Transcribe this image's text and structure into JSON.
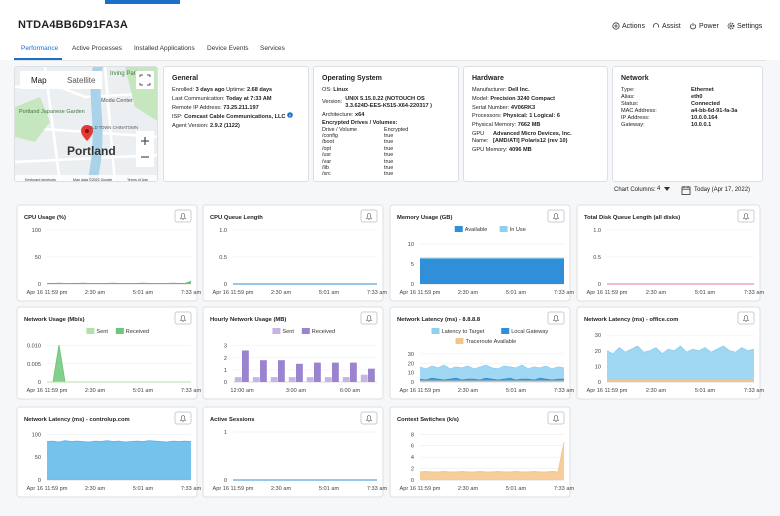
{
  "header": {
    "device": "NTDA4BB6D91FA3A",
    "actions": [
      "Actions",
      "Assist",
      "Power",
      "Settings"
    ]
  },
  "tabs": [
    "Performance",
    "Active Processes",
    "Installed Applications",
    "Device Events",
    "Services"
  ],
  "map": {
    "buttons": [
      "Map",
      "Satellite"
    ],
    "city": "Portland",
    "places": [
      "Irving Park",
      "Moda Center",
      "Portland Japanese Garden",
      "OLD TOWN CHINATOWN"
    ],
    "footer": [
      "Keyboard shortcuts",
      "Map data ©2022 Google",
      "Terms of Use"
    ]
  },
  "general": {
    "title": "General",
    "rows": [
      [
        "Enrolled:",
        "3 days ago",
        "Uptime:",
        "2.68 days"
      ],
      [
        "Last Communication:",
        "Today at 7:33 AM"
      ],
      [
        "Remote IP Address:",
        "73.25.211.197"
      ],
      [
        "ISP:",
        "Comcast Cable Communications, LLC"
      ],
      [
        "Agent Version:",
        "2.9.2 (1122)"
      ]
    ]
  },
  "os": {
    "title": "Operating System",
    "rows": [
      [
        "OS:",
        "Linux"
      ],
      [
        "Version:",
        "UNIX 5.15.0.22 (NOTOUCH OS 3.3.624D-EES-K515-X64-220317 )"
      ],
      [
        "Architecture:",
        "x64"
      ]
    ],
    "drives_title": "Encrypted Drives / Volumes:",
    "drives_header": [
      "Drive / Volume",
      "Encrypted"
    ],
    "drives": [
      [
        "/config",
        "true"
      ],
      [
        "/boot",
        "true"
      ],
      [
        "/opt",
        "true"
      ],
      [
        "/usr",
        "true"
      ],
      [
        "/var",
        "true"
      ],
      [
        "/lib",
        "true"
      ],
      [
        "/src",
        "true"
      ]
    ]
  },
  "hardware": {
    "title": "Hardware",
    "rows": [
      [
        "Manufacturer:",
        "Dell Inc."
      ],
      [
        "Model:",
        "Precision 3240 Compact"
      ],
      [
        "Serial Number:",
        "4V06RK3"
      ],
      [
        "Processors:",
        "Physical: 1 Logical: 6"
      ],
      [
        "Physical Memory:",
        "7662 MB"
      ],
      [
        "GPU Name:",
        "Advanced Micro Devices, Inc. [AMD/ATI] Polaris12 (rev 10)"
      ],
      [
        "GPU Memory:",
        "4096 MB"
      ]
    ]
  },
  "network": {
    "title": "Network",
    "rows": [
      [
        "Type:",
        "Ethernet"
      ],
      [
        "Alias:",
        "eth0"
      ],
      [
        "Status:",
        "Connected"
      ],
      [
        "MAC Address:",
        "a4-bb-6d-91-fa-3a"
      ],
      [
        "IP Address:",
        "10.0.0.164"
      ],
      [
        "Gateway:",
        "10.0.0.1"
      ]
    ]
  },
  "controls": {
    "columns_label": "Chart Columns:",
    "columns": "4",
    "date": "Today (Apr 17, 2022)"
  },
  "charts": [
    {
      "type": "area",
      "title": "CPU Usage (%)",
      "ylim": [
        0,
        100
      ],
      "yticks": [
        0,
        50,
        100
      ],
      "xlabels": [
        "Apr 16 11:59 pm",
        "2:30 am",
        "5:01 am",
        "7:33 am"
      ],
      "series": [
        {
          "color": "#5cbf6a",
          "values": [
            1,
            1,
            1.5,
            1,
            1,
            1,
            1.5,
            1,
            1,
            1,
            1,
            1.5,
            1,
            1,
            1,
            1,
            1.5,
            1,
            1,
            1,
            1,
            1.5,
            1,
            1,
            5
          ]
        }
      ]
    },
    {
      "type": "area",
      "title": "CPU Queue Length",
      "ylim": [
        0,
        1
      ],
      "yticks": [
        0,
        0.5,
        {
          "value": 1,
          "label": "1.0"
        }
      ],
      "xlabels": [
        "Apr 16 11:59 pm",
        "2:30 am",
        "5:01 am",
        "7:33 am"
      ],
      "series": [
        {
          "color": "#2f8fd8",
          "values": [
            0,
            0,
            0,
            0,
            0,
            0,
            0,
            0,
            0,
            0,
            0,
            0
          ]
        }
      ]
    },
    {
      "type": "stacked",
      "title": "Memory Usage (GB)",
      "ylim": [
        0,
        11
      ],
      "yticks": [
        0,
        5,
        10
      ],
      "xlabels": [
        "Apr 16 11:59 pm",
        "2:30 am",
        "5:01 am",
        "7:33 am"
      ],
      "series": [
        {
          "name": "Available",
          "color": "#2f8fd8",
          "values": [
            6.3,
            6.3,
            6.3,
            6.3,
            6.3,
            6.3,
            6.3,
            6.3,
            6.3,
            6.3,
            6.3,
            6.3
          ]
        },
        {
          "name": "In Use",
          "color": "#8fd0f0",
          "values": [
            0.2,
            0.2,
            0.2,
            0.2,
            0.2,
            0.2,
            0.2,
            0.2,
            0.2,
            0.2,
            0.2,
            0.2
          ]
        }
      ]
    },
    {
      "type": "area",
      "title": "Total Disk Queue Length (all disks)",
      "ylim": [
        0,
        1
      ],
      "yticks": [
        0,
        0.5,
        {
          "value": 1,
          "label": "1.0"
        }
      ],
      "xlabels": [
        "Apr 16 11:59 pm",
        "2:30 am",
        "5:01 am",
        "7:33 am"
      ],
      "series": [
        {
          "color": "#e27a9b",
          "values": [
            0,
            0,
            0,
            0,
            0,
            0,
            0,
            0,
            0,
            0,
            0,
            0
          ]
        }
      ]
    },
    {
      "type": "area",
      "title": "Network Usage (Mb/s)",
      "ylim": [
        0,
        0.011
      ],
      "yticks": [
        0,
        0.005,
        {
          "value": 0.01,
          "label": "0.010"
        }
      ],
      "xlabels": [
        "Apr 16 11:59 pm",
        "2:30 am",
        "5:01 am",
        "7:33 am"
      ],
      "series": [
        {
          "name": "Sent",
          "color": "#b5dfa8",
          "values": [
            0,
            0,
            0,
            0,
            0,
            0,
            0,
            0,
            0,
            0,
            0,
            0,
            0,
            0,
            0,
            0,
            0,
            0,
            0,
            0,
            0,
            0,
            0,
            0,
            0
          ]
        },
        {
          "name": "Received",
          "color": "#6cc77a",
          "values": [
            0,
            0,
            0.0102,
            0,
            0,
            0,
            0,
            0,
            0,
            0,
            0,
            0,
            0,
            0,
            0,
            0,
            0,
            0,
            0,
            0,
            0,
            0,
            0,
            0,
            0
          ]
        }
      ]
    },
    {
      "type": "bar",
      "title": "Hourly Network Usage (MB)",
      "ylim": [
        0,
        3.3
      ],
      "yticks": [
        0,
        1,
        2,
        3
      ],
      "categories": [
        "12:00 am",
        null,
        null,
        "3:00 am",
        null,
        null,
        "6:00 am",
        null
      ],
      "series": [
        {
          "name": "Sent",
          "color": "#c6b4e6",
          "values": [
            0.4,
            0.4,
            0.4,
            0.4,
            0.4,
            0.4,
            0.4,
            0.6
          ]
        },
        {
          "name": "Received",
          "color": "#9a83cf",
          "values": [
            2.6,
            1.8,
            1.8,
            1.5,
            1.6,
            1.6,
            1.6,
            1.1
          ]
        }
      ]
    },
    {
      "type": "area",
      "title": "Network Latency (ms) - 8.8.8.8",
      "ylim": [
        0,
        32
      ],
      "yticks": [
        0,
        10,
        20,
        30
      ],
      "xlabels": [
        "Apr 16 11:59 pm",
        "2:30 am",
        "5:01 am",
        "7:33 am"
      ],
      "series": [
        {
          "name": "Latency to Target",
          "color": "#8fd0f0",
          "values": [
            16,
            14,
            17,
            15,
            18,
            14,
            16,
            15,
            17,
            14,
            16,
            18,
            15,
            14,
            17,
            16,
            15,
            18,
            14,
            16,
            15,
            17,
            14,
            16,
            15
          ]
        },
        {
          "name": "Local Gateway",
          "color": "#2f8fd8",
          "values": [
            3,
            2,
            4,
            3,
            2,
            3,
            4,
            2,
            3,
            3,
            2,
            4,
            3,
            2,
            3,
            4,
            2,
            3,
            3,
            2,
            4,
            3,
            2,
            3,
            3
          ]
        },
        {
          "name": "Traceroute Available",
          "color": "#f5c48a",
          "values": [
            1,
            1,
            1,
            1,
            1,
            1,
            1,
            1,
            1,
            1,
            1,
            1,
            1,
            1,
            1,
            1,
            1,
            1,
            1,
            1,
            1,
            1,
            1,
            1,
            1
          ]
        }
      ]
    },
    {
      "type": "area",
      "title": "Network Latency (ms) - office.com",
      "ylim": [
        0,
        32
      ],
      "yticks": [
        0,
        10,
        20,
        30
      ],
      "xlabels": [
        "Apr 16 11:59 pm",
        "2:30 am",
        "5:01 am",
        "7:33 am"
      ],
      "series": [
        {
          "color": "#8fd0f0",
          "values": [
            20,
            18,
            22,
            19,
            21,
            23,
            19,
            20,
            22,
            18,
            21,
            20,
            23,
            19,
            21,
            20,
            22,
            19,
            21,
            23,
            20,
            19,
            22,
            20,
            21
          ]
        },
        {
          "color": "#f5c48a",
          "values": [
            1,
            1,
            1,
            1,
            1,
            1,
            1,
            1,
            1,
            1,
            1,
            1,
            1,
            1,
            1,
            1,
            1,
            1,
            1,
            1,
            1,
            1,
            1,
            1,
            1
          ]
        }
      ]
    },
    {
      "type": "area",
      "title": "Network Latency (ms) - controlup.com",
      "ylim": [
        0,
        105
      ],
      "yticks": [
        0,
        50,
        100
      ],
      "xlabels": [
        "Apr 16 11:59 pm",
        "2:30 am",
        "5:01 am",
        "7:33 am"
      ],
      "series": [
        {
          "color": "#5ab8ea",
          "values": [
            84,
            85,
            83,
            86,
            84,
            85,
            84,
            83,
            85,
            84,
            86,
            84,
            85,
            83,
            84,
            85,
            84,
            86,
            85,
            84,
            83,
            85,
            84,
            85,
            84
          ]
        }
      ]
    },
    {
      "type": "area",
      "title": "Active Sessions",
      "ylim": [
        0,
        1
      ],
      "yticks": [
        0,
        1
      ],
      "xlabels": [
        "Apr 16 11:59 pm",
        "2:30 am",
        "5:01 am",
        "7:33 am"
      ],
      "series": [
        {
          "color": "#2f8fd8",
          "values": [
            0,
            0,
            0,
            0,
            0,
            0,
            0,
            0,
            0,
            0,
            0,
            0
          ]
        }
      ]
    },
    {
      "type": "area",
      "title": "Context Switches (k/s)",
      "ylim": [
        0,
        8.4
      ],
      "yticks": [
        0,
        2,
        4,
        6,
        8
      ],
      "xlabels": [
        "Apr 16 11:59 pm",
        "2:30 am",
        "5:01 am",
        "7:33 am"
      ],
      "series": [
        {
          "color": "#f5c48a",
          "values": [
            1.4,
            1.5,
            1.4,
            1.4,
            1.5,
            1.4,
            1.4,
            1.5,
            1.4,
            1.4,
            1.5,
            1.4,
            1.4,
            1.5,
            1.4,
            1.4,
            1.5,
            1.4,
            1.4,
            1.5,
            1.4,
            1.4,
            1.5,
            1.4,
            6.6
          ]
        }
      ]
    }
  ]
}
